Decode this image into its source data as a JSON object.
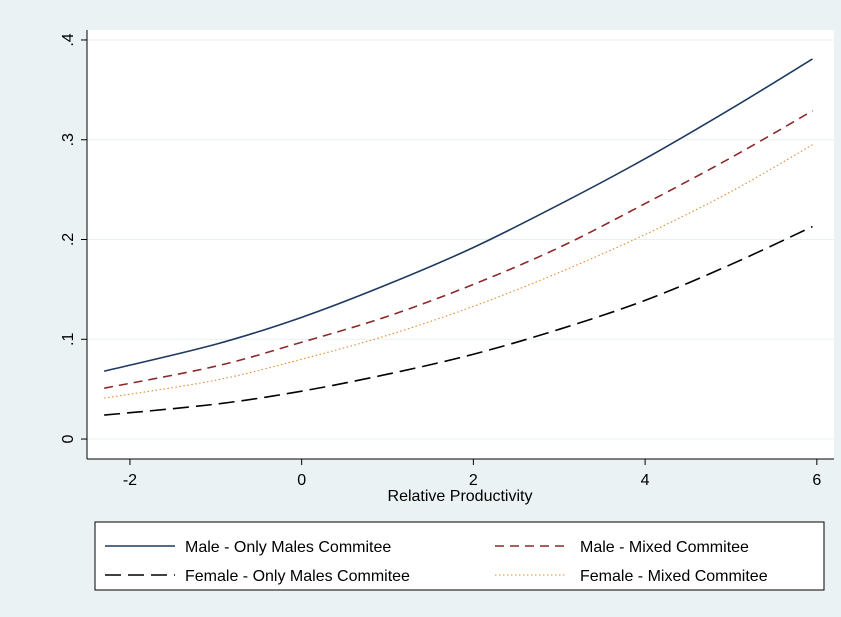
{
  "chart_data": {
    "type": "line",
    "title": "",
    "xlabel": "Relative Productivity",
    "ylabel": "",
    "xlim": [
      -2.5,
      6.2
    ],
    "ylim": [
      -0.02,
      0.41
    ],
    "xticks": [
      -2,
      0,
      2,
      4,
      6
    ],
    "xtick_labels": [
      "-2",
      "0",
      "2",
      "4",
      "6"
    ],
    "yticks": [
      0,
      0.1,
      0.2,
      0.3,
      0.4
    ],
    "ytick_labels": [
      "0",
      ".1",
      ".2",
      ".3",
      ".4"
    ],
    "grid": true,
    "legend_position": "bottom",
    "series": [
      {
        "name": "Male - Only Males Commitee",
        "color": "#1f3a5f",
        "dash": "solid",
        "x": [
          -2.3,
          -1,
          0,
          1,
          2,
          3,
          4,
          5,
          5.95
        ],
        "values": [
          0.068,
          0.095,
          0.122,
          0.155,
          0.192,
          0.235,
          0.281,
          0.331,
          0.381
        ]
      },
      {
        "name": "Male - Mixed Commitee",
        "color": "#8b2a2a",
        "dash": "dashed",
        "x": [
          -2.3,
          -1,
          0,
          1,
          2,
          3,
          4,
          5,
          5.95
        ],
        "values": [
          0.051,
          0.073,
          0.097,
          0.123,
          0.155,
          0.192,
          0.236,
          0.282,
          0.329
        ]
      },
      {
        "name": "Female - Only Males Commitee",
        "color": "#000000",
        "dash": "longdash",
        "x": [
          -2.3,
          -1,
          0,
          1,
          2,
          3,
          4,
          5,
          5.95
        ],
        "values": [
          0.024,
          0.035,
          0.048,
          0.065,
          0.085,
          0.11,
          0.139,
          0.175,
          0.213
        ]
      },
      {
        "name": "Female - Mixed Commitee",
        "color": "#e08a2e",
        "dash": "dotted",
        "x": [
          -2.3,
          -1,
          0,
          1,
          2,
          3,
          4,
          5,
          5.95
        ],
        "values": [
          0.041,
          0.059,
          0.08,
          0.104,
          0.133,
          0.167,
          0.205,
          0.248,
          0.295
        ]
      }
    ]
  }
}
